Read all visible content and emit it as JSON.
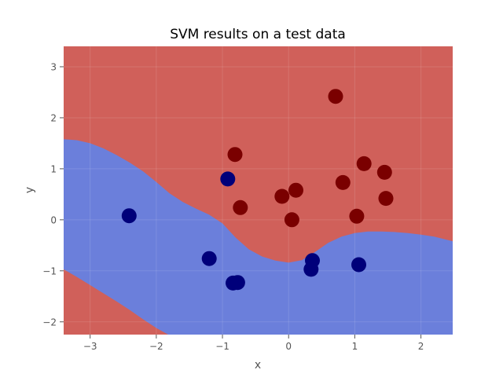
{
  "chart_data": {
    "type": "scatter",
    "title": "SVM results on a test data",
    "xlabel": "x",
    "ylabel": "y",
    "xlim": [
      -3.4,
      2.48
    ],
    "ylim": [
      -2.25,
      3.4
    ],
    "xticks": [
      -3,
      -2,
      -1,
      0,
      1,
      2
    ],
    "yticks": [
      -2,
      -1,
      0,
      1,
      2,
      3
    ],
    "xtick_labels": [
      "−3",
      "−2",
      "−1",
      "0",
      "1",
      "2"
    ],
    "ytick_labels": [
      "−2",
      "−1",
      "0",
      "1",
      "2",
      "3"
    ],
    "grid": true,
    "regions": {
      "positive_color": "#d0605a",
      "negative_color": "#6b7fdb",
      "upper_boundary": [
        [
          -3.4,
          1.58
        ],
        [
          -3.2,
          1.56
        ],
        [
          -3.0,
          1.5
        ],
        [
          -2.8,
          1.4
        ],
        [
          -2.6,
          1.27
        ],
        [
          -2.4,
          1.12
        ],
        [
          -2.2,
          0.95
        ],
        [
          -2.0,
          0.74
        ],
        [
          -1.8,
          0.52
        ],
        [
          -1.6,
          0.35
        ],
        [
          -1.4,
          0.22
        ],
        [
          -1.2,
          0.1
        ],
        [
          -1.0,
          -0.07
        ],
        [
          -0.8,
          -0.35
        ],
        [
          -0.6,
          -0.58
        ],
        [
          -0.4,
          -0.72
        ],
        [
          -0.2,
          -0.8
        ],
        [
          0.0,
          -0.84
        ],
        [
          0.2,
          -0.79
        ],
        [
          0.4,
          -0.63
        ],
        [
          0.6,
          -0.45
        ],
        [
          0.8,
          -0.33
        ],
        [
          1.0,
          -0.26
        ],
        [
          1.2,
          -0.23
        ],
        [
          1.4,
          -0.23
        ],
        [
          1.6,
          -0.24
        ],
        [
          1.8,
          -0.26
        ],
        [
          2.0,
          -0.29
        ],
        [
          2.2,
          -0.33
        ],
        [
          2.48,
          -0.42
        ]
      ],
      "lower_boundary": [
        [
          -3.4,
          -0.97
        ],
        [
          -3.2,
          -1.12
        ],
        [
          -3.0,
          -1.28
        ],
        [
          -2.8,
          -1.44
        ],
        [
          -2.6,
          -1.6
        ],
        [
          -2.4,
          -1.77
        ],
        [
          -2.2,
          -1.95
        ],
        [
          -2.0,
          -2.12
        ],
        [
          -1.82,
          -2.25
        ]
      ]
    },
    "series": [
      {
        "color": "#7a0000",
        "points": [
          [
            0.71,
            2.42
          ],
          [
            -0.81,
            1.28
          ],
          [
            1.14,
            1.1
          ],
          [
            1.45,
            0.93
          ],
          [
            0.82,
            0.73
          ],
          [
            0.11,
            0.58
          ],
          [
            -0.1,
            0.46
          ],
          [
            1.47,
            0.42
          ],
          [
            -0.73,
            0.24
          ],
          [
            1.03,
            0.07
          ],
          [
            0.05,
            0.0
          ]
        ]
      },
      {
        "color": "#00007a",
        "points": [
          [
            -0.92,
            0.8
          ],
          [
            -2.41,
            0.08
          ],
          [
            -1.2,
            -0.76
          ],
          [
            0.36,
            -0.8
          ],
          [
            1.06,
            -0.88
          ],
          [
            0.34,
            -0.97
          ],
          [
            -0.77,
            -1.23
          ],
          [
            -0.84,
            -1.24
          ]
        ]
      }
    ]
  }
}
